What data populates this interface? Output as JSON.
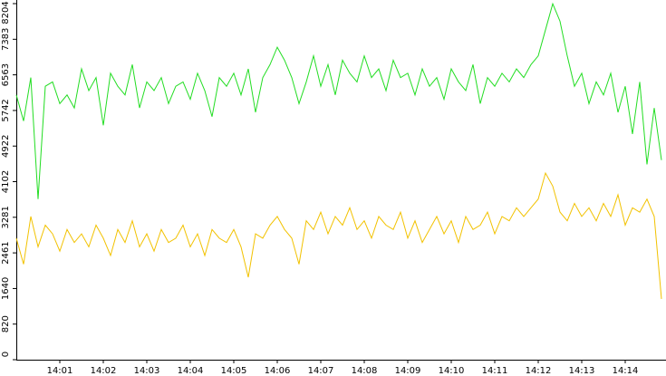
{
  "chart_data": {
    "type": "line",
    "categories": [
      null,
      null,
      null,
      null,
      null,
      null,
      "14:01",
      null,
      null,
      null,
      null,
      null,
      "14:02",
      null,
      null,
      null,
      null,
      null,
      "14:03",
      null,
      null,
      null,
      null,
      null,
      "14:04",
      null,
      null,
      null,
      null,
      null,
      "14:05",
      null,
      null,
      null,
      null,
      null,
      "14:06",
      null,
      null,
      null,
      null,
      null,
      "14:07",
      null,
      null,
      null,
      null,
      null,
      "14:08",
      null,
      null,
      null,
      null,
      null,
      "14:09",
      null,
      null,
      null,
      null,
      null,
      "14:10",
      null,
      null,
      null,
      null,
      null,
      "14:11",
      null,
      null,
      null,
      null,
      null,
      "14:12",
      null,
      null,
      null,
      null,
      null,
      "14:13",
      null,
      null,
      null,
      null,
      null,
      "14:14",
      null,
      null,
      null,
      null,
      null
    ],
    "series": [
      {
        "color": "#22dd22",
        "values": [
          6100,
          5500,
          6500,
          3700,
          6300,
          6400,
          5900,
          6100,
          5800,
          6700,
          6200,
          6500,
          5400,
          6600,
          6300,
          6100,
          6800,
          5800,
          6400,
          6200,
          6500,
          5900,
          6300,
          6400,
          6000,
          6600,
          6200,
          5600,
          6500,
          6300,
          6600,
          6100,
          6700,
          5700,
          6500,
          6800,
          7200,
          6900,
          6500,
          5900,
          6400,
          7000,
          6300,
          6800,
          6100,
          6900,
          6600,
          6400,
          7000,
          6500,
          6700,
          6200,
          6900,
          6500,
          6600,
          6100,
          6700,
          6300,
          6500,
          6000,
          6700,
          6400,
          6200,
          6800,
          5900,
          6500,
          6300,
          6600,
          6400,
          6700,
          6500,
          6800,
          7000,
          7600,
          8200,
          7800,
          7000,
          6300,
          6600,
          5900,
          6400,
          6100,
          6600,
          5700,
          6300,
          5200,
          6400,
          4500,
          5800,
          4600
        ]
      },
      {
        "color": "#f2c200",
        "values": [
          2800,
          2200,
          3300,
          2600,
          3100,
          2900,
          2500,
          3000,
          2700,
          2900,
          2600,
          3100,
          2800,
          2400,
          3000,
          2700,
          3200,
          2600,
          2900,
          2500,
          3000,
          2700,
          2800,
          3100,
          2600,
          2900,
          2400,
          3000,
          2800,
          2700,
          3000,
          2600,
          1900,
          2900,
          2800,
          3100,
          3300,
          3000,
          2800,
          2200,
          3200,
          3000,
          3400,
          2900,
          3300,
          3100,
          3500,
          3000,
          3200,
          2800,
          3300,
          3100,
          3000,
          3400,
          2800,
          3200,
          2700,
          3000,
          3300,
          2900,
          3200,
          2700,
          3300,
          3000,
          3100,
          3400,
          2900,
          3300,
          3200,
          3500,
          3300,
          3500,
          3700,
          4300,
          4000,
          3400,
          3200,
          3600,
          3300,
          3500,
          3200,
          3600,
          3300,
          3800,
          3100,
          3500,
          3400,
          3700,
          3300,
          1400
        ]
      }
    ],
    "ylim": [
      0,
      8204
    ],
    "yticks": [
      0,
      820,
      1640,
      2461,
      3281,
      4102,
      4922,
      5742,
      6563,
      7383,
      8204
    ]
  }
}
